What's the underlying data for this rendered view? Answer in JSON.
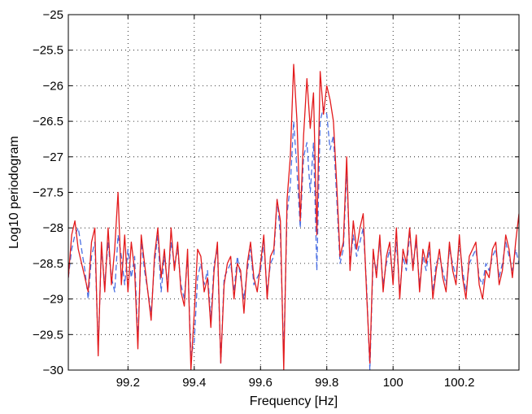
{
  "chart_data": {
    "type": "line",
    "title": "",
    "xlabel": "Frequency [Hz]",
    "ylabel": "Log10 periodogram",
    "xlim": [
      99.02,
      100.38
    ],
    "ylim": [
      -30,
      -25
    ],
    "xticks": [
      99.2,
      99.4,
      99.6,
      99.8,
      100,
      100.2
    ],
    "xtick_labels": [
      "99.2",
      "99.4",
      "99.6",
      "99.8",
      "100",
      "100.2"
    ],
    "yticks": [
      -25,
      -25.5,
      -26,
      -26.5,
      -27,
      -27.5,
      -28,
      -28.5,
      -29,
      -29.5,
      -30
    ],
    "ytick_labels": [
      "−25",
      "−25.5",
      "−26",
      "−26.5",
      "−27",
      "−27.5",
      "−28",
      "−28.5",
      "−29",
      "−29.5",
      "−30"
    ],
    "grid": true,
    "legend": "none",
    "series": [
      {
        "color": "#4a6fe3",
        "style": "dashed",
        "x": [
          99.02,
          99.03,
          99.04,
          99.05,
          99.06,
          99.07,
          99.08,
          99.09,
          99.1,
          99.11,
          99.12,
          99.13,
          99.14,
          99.15,
          99.16,
          99.17,
          99.18,
          99.19,
          99.2,
          99.21,
          99.22,
          99.23,
          99.24,
          99.25,
          99.26,
          99.27,
          99.28,
          99.29,
          99.3,
          99.31,
          99.32,
          99.33,
          99.34,
          99.35,
          99.36,
          99.37,
          99.38,
          99.39,
          99.4,
          99.41,
          99.42,
          99.43,
          99.44,
          99.45,
          99.46,
          99.47,
          99.48,
          99.49,
          99.5,
          99.51,
          99.52,
          99.53,
          99.54,
          99.55,
          99.56,
          99.57,
          99.58,
          99.59,
          99.6,
          99.61,
          99.62,
          99.63,
          99.64,
          99.65,
          99.66,
          99.67,
          99.68,
          99.69,
          99.7,
          99.71,
          99.72,
          99.73,
          99.74,
          99.75,
          99.76,
          99.77,
          99.78,
          99.79,
          99.8,
          99.81,
          99.82,
          99.83,
          99.84,
          99.85,
          99.86,
          99.87,
          99.88,
          99.89,
          99.9,
          99.91,
          99.92,
          99.93,
          99.94,
          99.95,
          99.96,
          99.97,
          99.98,
          99.99,
          100.0,
          100.01,
          100.02,
          100.03,
          100.04,
          100.05,
          100.06,
          100.07,
          100.08,
          100.09,
          100.1,
          100.11,
          100.12,
          100.13,
          100.14,
          100.15,
          100.16,
          100.17,
          100.18,
          100.19,
          100.2,
          100.21,
          100.22,
          100.23,
          100.24,
          100.25,
          100.26,
          100.27,
          100.28,
          100.29,
          100.3,
          100.31,
          100.32,
          100.33,
          100.34,
          100.35,
          100.36,
          100.37,
          100.38
        ],
        "y": [
          -28.7,
          -28.3,
          -28.1,
          -28.0,
          -28.3,
          -28.6,
          -29.0,
          -28.4,
          -28.2,
          -29.7,
          -28.3,
          -28.8,
          -28.2,
          -28.7,
          -28.9,
          -28.1,
          -28.4,
          -28.8,
          -28.3,
          -28.7,
          -28.4,
          -29.6,
          -28.2,
          -28.6,
          -28.9,
          -29.2,
          -28.5,
          -28.1,
          -28.9,
          -28.4,
          -28.8,
          -28.2,
          -28.5,
          -28.3,
          -28.8,
          -29.0,
          -28.4,
          -29.8,
          -29.6,
          -28.7,
          -28.5,
          -28.8,
          -28.6,
          -29.3,
          -28.5,
          -28.3,
          -29.9,
          -28.7,
          -28.6,
          -28.5,
          -28.9,
          -28.4,
          -28.7,
          -29.0,
          -28.6,
          -28.3,
          -28.8,
          -28.7,
          -28.6,
          -28.2,
          -28.9,
          -28.5,
          -28.4,
          -27.6,
          -28.1,
          -29.8,
          -27.8,
          -27.4,
          -26.5,
          -27.2,
          -28.0,
          -27.0,
          -26.8,
          -27.5,
          -26.8,
          -28.6,
          -26.5,
          -26.3,
          -26.4,
          -26.9,
          -26.7,
          -27.6,
          -28.5,
          -28.3,
          -27.2,
          -28.5,
          -28.1,
          -28.4,
          -28.2,
          -28.0,
          -28.8,
          -30.0,
          -28.4,
          -28.6,
          -28.2,
          -28.8,
          -28.5,
          -28.3,
          -28.7,
          -28.2,
          -28.9,
          -28.4,
          -28.6,
          -28.1,
          -28.5,
          -28.2,
          -28.8,
          -28.4,
          -28.6,
          -28.3,
          -28.9,
          -28.5,
          -28.4,
          -28.6,
          -28.8,
          -28.3,
          -28.5,
          -28.7,
          -28.2,
          -28.6,
          -28.9,
          -28.5,
          -28.4,
          -28.3,
          -28.7,
          -28.8,
          -28.5,
          -28.6,
          -28.4,
          -28.3,
          -28.7,
          -28.5,
          -28.2,
          -28.4,
          -28.6,
          -28.3,
          -28.5
        ]
      },
      {
        "color": "#e31a1c",
        "style": "solid",
        "x": [
          99.02,
          99.03,
          99.04,
          99.05,
          99.06,
          99.07,
          99.08,
          99.09,
          99.1,
          99.11,
          99.12,
          99.13,
          99.14,
          99.15,
          99.16,
          99.17,
          99.18,
          99.19,
          99.2,
          99.21,
          99.22,
          99.23,
          99.24,
          99.25,
          99.26,
          99.27,
          99.28,
          99.29,
          99.3,
          99.31,
          99.32,
          99.33,
          99.34,
          99.35,
          99.36,
          99.37,
          99.38,
          99.39,
          99.4,
          99.41,
          99.42,
          99.43,
          99.44,
          99.45,
          99.46,
          99.47,
          99.48,
          99.49,
          99.5,
          99.51,
          99.52,
          99.53,
          99.54,
          99.55,
          99.56,
          99.57,
          99.58,
          99.59,
          99.6,
          99.61,
          99.62,
          99.63,
          99.64,
          99.65,
          99.66,
          99.67,
          99.68,
          99.69,
          99.7,
          99.71,
          99.72,
          99.73,
          99.74,
          99.75,
          99.76,
          99.77,
          99.78,
          99.79,
          99.8,
          99.81,
          99.82,
          99.83,
          99.84,
          99.85,
          99.86,
          99.87,
          99.88,
          99.89,
          99.9,
          99.91,
          99.92,
          99.93,
          99.94,
          99.95,
          99.96,
          99.97,
          99.98,
          99.99,
          100.0,
          100.01,
          100.02,
          100.03,
          100.04,
          100.05,
          100.06,
          100.07,
          100.08,
          100.09,
          100.1,
          100.11,
          100.12,
          100.13,
          100.14,
          100.15,
          100.16,
          100.17,
          100.18,
          100.19,
          100.2,
          100.21,
          100.22,
          100.23,
          100.24,
          100.25,
          100.26,
          100.27,
          100.28,
          100.29,
          100.3,
          100.31,
          100.32,
          100.33,
          100.34,
          100.35,
          100.36,
          100.37,
          100.38
        ],
        "y": [
          -28.7,
          -28.1,
          -27.9,
          -28.3,
          -28.5,
          -28.7,
          -28.9,
          -28.2,
          -28.0,
          -29.8,
          -28.2,
          -28.9,
          -28.0,
          -28.8,
          -28.3,
          -27.5,
          -28.8,
          -28.1,
          -28.9,
          -28.2,
          -28.6,
          -29.7,
          -28.1,
          -28.5,
          -28.9,
          -29.3,
          -28.4,
          -28.0,
          -28.7,
          -28.3,
          -28.9,
          -28.0,
          -28.6,
          -28.2,
          -28.9,
          -29.1,
          -28.3,
          -30.0,
          -29.2,
          -28.3,
          -28.4,
          -28.9,
          -28.7,
          -29.4,
          -28.6,
          -28.2,
          -29.9,
          -28.8,
          -28.5,
          -28.4,
          -29.0,
          -28.5,
          -28.6,
          -29.2,
          -28.5,
          -28.2,
          -28.7,
          -28.9,
          -28.5,
          -28.1,
          -29.0,
          -28.4,
          -28.3,
          -27.6,
          -27.9,
          -30.0,
          -27.6,
          -27.0,
          -25.7,
          -26.5,
          -27.9,
          -26.7,
          -25.9,
          -26.6,
          -26.1,
          -28.1,
          -25.8,
          -26.4,
          -26.0,
          -26.2,
          -26.5,
          -27.4,
          -28.4,
          -28.2,
          -27.0,
          -28.6,
          -27.9,
          -28.3,
          -28.0,
          -27.8,
          -28.9,
          -29.9,
          -28.3,
          -28.7,
          -28.1,
          -28.9,
          -28.4,
          -28.2,
          -28.8,
          -28.0,
          -29.0,
          -28.3,
          -28.5,
          -28.0,
          -28.6,
          -28.1,
          -28.9,
          -28.3,
          -28.5,
          -28.2,
          -29.0,
          -28.6,
          -28.3,
          -28.7,
          -28.9,
          -28.2,
          -28.6,
          -28.8,
          -28.1,
          -28.7,
          -29.0,
          -28.4,
          -28.3,
          -28.2,
          -28.8,
          -29.0,
          -28.6,
          -28.7,
          -28.3,
          -28.2,
          -28.8,
          -28.6,
          -28.1,
          -28.3,
          -28.7,
          -28.2,
          -27.8
        ]
      }
    ]
  }
}
